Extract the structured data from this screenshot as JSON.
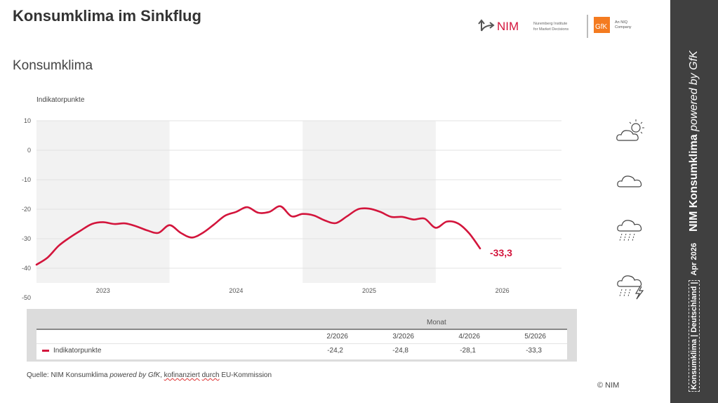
{
  "header": {
    "title": "Konsumklima im Sinkflug",
    "subtitle": "Konsumklima"
  },
  "logos": {
    "nim_text": "NIM",
    "nim_sub1": "Nuremberg Institute",
    "nim_sub2": "for Market Decisions",
    "gfk_text": "GfK",
    "gfk_sub1": "An NIQ",
    "gfk_sub2": "Company"
  },
  "colors": {
    "line": "#d3153c",
    "band": "#f2f2f2",
    "sidebar": "#404040"
  },
  "chart_data": {
    "type": "line",
    "ylabel": "Indikatorpunkte",
    "ylim": [
      -50,
      10
    ],
    "yticks": [
      10,
      0,
      -10,
      -20,
      -30,
      -40,
      -50
    ],
    "xtick_labels": [
      "2023",
      "2024",
      "2025",
      "2026"
    ],
    "shaded_years": [
      "2023",
      "2025"
    ],
    "grid": true,
    "x": [
      "2023-01",
      "2023-02",
      "2023-03",
      "2023-04",
      "2023-05",
      "2023-06",
      "2023-07",
      "2023-08",
      "2023-09",
      "2023-10",
      "2023-11",
      "2023-12",
      "2024-01",
      "2024-02",
      "2024-03",
      "2024-04",
      "2024-05",
      "2024-06",
      "2024-07",
      "2024-08",
      "2024-09",
      "2024-10",
      "2024-11",
      "2024-12",
      "2025-01",
      "2025-02",
      "2025-03",
      "2025-04",
      "2025-05",
      "2025-06",
      "2025-07",
      "2025-08",
      "2025-09",
      "2025-10",
      "2025-11",
      "2025-12",
      "2026-01",
      "2026-02",
      "2026-03",
      "2026-04",
      "2026-05"
    ],
    "series": [
      {
        "name": "Indikatorpunkte",
        "values": [
          -38.8,
          -36.4,
          -32.4,
          -29.6,
          -27.2,
          -25.0,
          -24.4,
          -25.0,
          -24.8,
          -25.8,
          -27.2,
          -28.0,
          -25.4,
          -28.0,
          -29.6,
          -28.0,
          -25.2,
          -22.2,
          -20.9,
          -19.3,
          -21.2,
          -20.9,
          -19.0,
          -22.4,
          -21.6,
          -22.1,
          -23.8,
          -24.7,
          -22.4,
          -20.0,
          -19.8,
          -20.9,
          -22.6,
          -22.6,
          -23.5,
          -23.2,
          -26.3,
          -24.2,
          -24.8,
          -28.1,
          -33.3
        ]
      }
    ],
    "end_label": "-33,3"
  },
  "table": {
    "group_header": "Monat",
    "columns": [
      "2/2026",
      "3/2026",
      "4/2026",
      "5/2026"
    ],
    "row_label": "Indikatorpunkte",
    "values": [
      "-24,2",
      "-24,8",
      "-28,1",
      "-33,3"
    ]
  },
  "footer": {
    "source_prefix": "Quelle: NIM Konsumklima ",
    "source_italic": "powered by GfK",
    "source_comma": ", ",
    "source_w1": "kofinanziert",
    "source_w2": "durch",
    "source_rest": " EU-Kommission",
    "copyright": "© NIM"
  },
  "weather_icons": [
    "sun-cloud-icon",
    "cloud-icon",
    "rain-cloud-icon",
    "thunderstorm-icon"
  ],
  "sidebar": {
    "small": "Konsumklima | Deutschland |",
    "date": "Apr 2026",
    "big_bold": "NIM Konsumklima ",
    "big_italic": "powered by GfK"
  }
}
